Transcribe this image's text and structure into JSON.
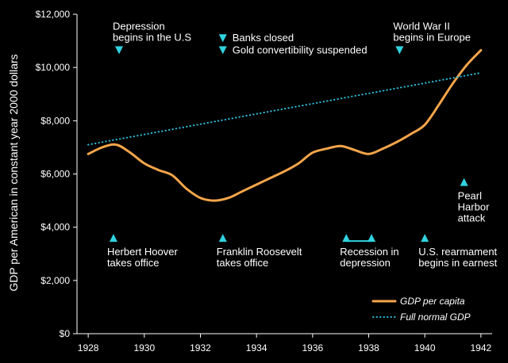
{
  "chart_data": {
    "type": "line",
    "ylabel": "GDP per American in constant year 2000 dollars",
    "xlim": [
      1927.6,
      1942.4
    ],
    "ylim": [
      0,
      12000
    ],
    "x_ticks": [
      "1928",
      "1930",
      "1932",
      "1934",
      "1936",
      "1938",
      "1940",
      "1942"
    ],
    "y_ticks": [
      "$0",
      "$2,000",
      "$4,000",
      "$6,000",
      "$8,000",
      "$10,000",
      "$12,000"
    ],
    "series": [
      {
        "name": "GDP per capita",
        "color": "#f5a54a",
        "style": "solid",
        "x": [
          1928,
          1928.5,
          1929,
          1929.5,
          1930,
          1930.5,
          1931,
          1931.5,
          1932,
          1932.5,
          1933,
          1933.5,
          1934,
          1934.5,
          1935,
          1935.5,
          1936,
          1936.5,
          1937,
          1937.5,
          1938,
          1938.5,
          1939,
          1939.5,
          1940,
          1940.5,
          1941,
          1941.5,
          1942
        ],
        "y": [
          6750,
          7000,
          7100,
          6800,
          6400,
          6150,
          5950,
          5450,
          5100,
          5000,
          5100,
          5350,
          5600,
          5850,
          6100,
          6400,
          6800,
          6950,
          7050,
          6900,
          6750,
          6950,
          7200,
          7500,
          7850,
          8600,
          9400,
          10100,
          10650
        ]
      },
      {
        "name": "Full normal GDP",
        "color": "#2ab7d6",
        "style": "dotted",
        "x": [
          1928,
          1942
        ],
        "y": [
          7100,
          9800
        ]
      }
    ],
    "annotations": [
      {
        "lines": [
          "Depression",
          "begins in the U.S"
        ],
        "x": 1929.1,
        "y": 10650,
        "marker": "down",
        "label": "above",
        "align": "start",
        "dx": -8
      },
      {
        "lines": [
          "Banks closed"
        ],
        "x": 1932.8,
        "y": 11100,
        "marker": "down",
        "label": "right",
        "align": "start",
        "dx": 0
      },
      {
        "lines": [
          "Gold convertibility suspended"
        ],
        "x": 1932.8,
        "y": 10650,
        "marker": "down",
        "label": "right",
        "align": "start",
        "dx": 0
      },
      {
        "lines": [
          "World War II",
          "begins in Europe"
        ],
        "x": 1939.1,
        "y": 10650,
        "marker": "down",
        "label": "above",
        "align": "start",
        "dx": -8
      },
      {
        "lines": [
          "Pearl",
          "Harbor",
          "attack"
        ],
        "x": 1941.4,
        "y": 5700,
        "marker": "up",
        "label": "below",
        "align": "start",
        "dx": -8
      },
      {
        "lines": [
          "Herbert Hoover",
          "takes office"
        ],
        "x": 1928.9,
        "y": 3600,
        "marker": "up",
        "label": "below",
        "align": "start",
        "dx": -8
      },
      {
        "lines": [
          "Franklin Roosevelt",
          "takes office"
        ],
        "x": 1932.8,
        "y": 3600,
        "marker": "up",
        "label": "below",
        "align": "start",
        "dx": -8
      },
      {
        "lines": [
          "Recession in",
          "depression"
        ],
        "x": 1937.2,
        "y": 3600,
        "marker": "range",
        "x2": 1938.1,
        "label": "below",
        "align": "start",
        "dx": -8
      },
      {
        "lines": [
          "U.S. rearmament",
          "begins in earnest"
        ],
        "x": 1940,
        "y": 3600,
        "marker": "up",
        "label": "below",
        "align": "start",
        "dx": -8
      }
    ],
    "grid": false,
    "legend": "bottom-right",
    "annotation_marker_color": "#2fd3df"
  }
}
